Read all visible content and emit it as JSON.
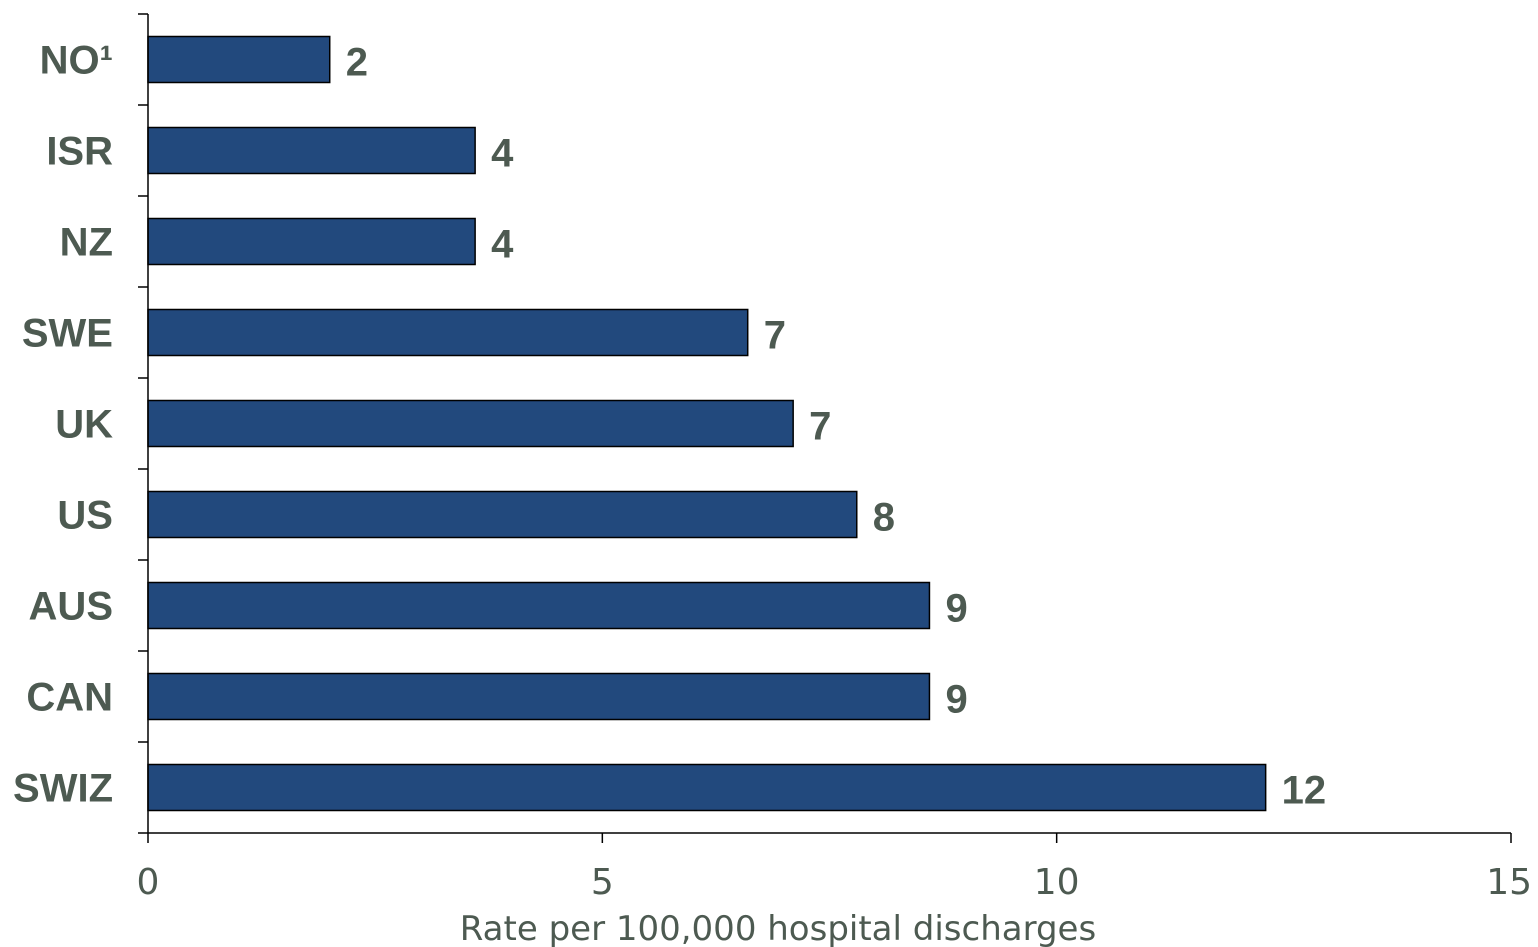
{
  "chart_data": {
    "type": "bar",
    "orientation": "horizontal",
    "categories": [
      "NO¹",
      "ISR",
      "NZ",
      "SWE",
      "UK",
      "US",
      "AUS",
      "CAN",
      "SWIZ"
    ],
    "values": [
      2.0,
      3.6,
      3.6,
      6.6,
      7.1,
      7.8,
      8.6,
      8.6,
      12.3
    ],
    "value_labels": [
      "2",
      "4",
      "4",
      "7",
      "7",
      "8",
      "9",
      "9",
      "12"
    ],
    "xlabel": "Rate per 100,000 hospital discharges",
    "ylabel": "",
    "xlim": [
      0,
      15
    ],
    "x_ticks": [
      0,
      5,
      10,
      15
    ],
    "x_tick_labels": [
      "0",
      "5",
      "10",
      "15"
    ],
    "grid": false,
    "bar_color": "#22497d",
    "bar_border_color": "#000000",
    "text_color": "#4d5a51"
  }
}
